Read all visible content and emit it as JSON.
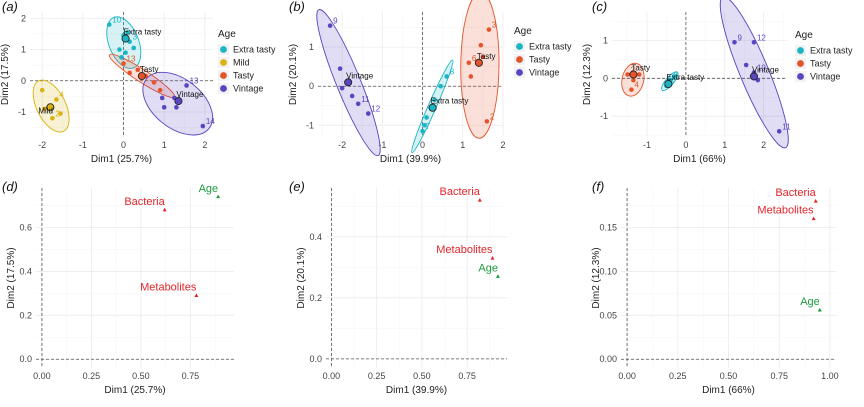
{
  "colors": {
    "Extra tasty": "#1ab5c4",
    "Mild": "#d9b310",
    "Tasty": "#e3542b",
    "Vintage": "#5a45c0",
    "Bacteria": "#e2262b",
    "Metabolites": "#e2262b",
    "Age": "#1e9a3e"
  },
  "chart_data": [
    {
      "panel": "(a)",
      "type": "scatter",
      "xlabel": "Dim1 (25.7%)",
      "ylabel": "Dim2 (17.5%)",
      "xlim": [
        -2.3,
        2.2
      ],
      "ylim": [
        -1.8,
        2.2
      ],
      "xticks": [
        -2,
        -1,
        0,
        1,
        2
      ],
      "yticks": [
        -1,
        0,
        1,
        2
      ],
      "legend_title": "Age",
      "legend": [
        "Extra tasty",
        "Mild",
        "Tasty",
        "Vintage"
      ],
      "points": [
        {
          "g": "Extra tasty",
          "x": -0.35,
          "y": 1.8,
          "label": "10"
        },
        {
          "g": "Extra tasty",
          "x": 0.0,
          "y": 1.45,
          "label": ""
        },
        {
          "g": "Extra tasty",
          "x": 0.1,
          "y": 1.55,
          "label": ""
        },
        {
          "g": "Extra tasty",
          "x": 0.15,
          "y": 1.25,
          "label": "3"
        },
        {
          "g": "Extra tasty",
          "x": 0.25,
          "y": 1.05,
          "label": ""
        },
        {
          "g": "Extra tasty",
          "x": -0.1,
          "y": 1.0,
          "label": ""
        },
        {
          "g": "Extra tasty",
          "x": 0.05,
          "y": 0.9,
          "label": ""
        },
        {
          "g": "Extra tasty",
          "x": -0.05,
          "y": 0.75,
          "label": ""
        },
        {
          "g": "Mild",
          "x": -2.0,
          "y": -0.3,
          "label": ""
        },
        {
          "g": "Mild",
          "x": -1.65,
          "y": -0.6,
          "label": "4"
        },
        {
          "g": "Mild",
          "x": -1.75,
          "y": -1.2,
          "label": "2"
        },
        {
          "g": "Mild",
          "x": -1.95,
          "y": -0.9,
          "label": ""
        },
        {
          "g": "Mild",
          "x": -1.55,
          "y": -1.05,
          "label": ""
        },
        {
          "g": "Tasty",
          "x": 0.0,
          "y": 0.55,
          "label": "13"
        },
        {
          "g": "Tasty",
          "x": 0.15,
          "y": 0.25,
          "label": ""
        },
        {
          "g": "Tasty",
          "x": 0.35,
          "y": 0.35,
          "label": ""
        },
        {
          "g": "Tasty",
          "x": 0.55,
          "y": 0.15,
          "label": ""
        },
        {
          "g": "Tasty",
          "x": 0.75,
          "y": -0.05,
          "label": ""
        },
        {
          "g": "Tasty",
          "x": 0.9,
          "y": -0.3,
          "label": ""
        },
        {
          "g": "Vintage",
          "x": 0.95,
          "y": -0.55,
          "label": ""
        },
        {
          "g": "Vintage",
          "x": 1.25,
          "y": -0.55,
          "label": ""
        },
        {
          "g": "Vintage",
          "x": 1.55,
          "y": -0.15,
          "label": "13"
        },
        {
          "g": "Vintage",
          "x": 1.3,
          "y": -0.85,
          "label": ""
        },
        {
          "g": "Vintage",
          "x": 1.95,
          "y": -1.45,
          "label": "14"
        },
        {
          "g": "Vintage",
          "x": 1.0,
          "y": -0.85,
          "label": ""
        }
      ],
      "means": [
        {
          "g": "Extra tasty",
          "x": 0.05,
          "y": 1.35,
          "label": "Extra tasty"
        },
        {
          "g": "Mild",
          "x": -1.8,
          "y": -0.85,
          "label": "Mild"
        },
        {
          "g": "Tasty",
          "x": 0.45,
          "y": 0.15,
          "label": "Tasty"
        },
        {
          "g": "Vintage",
          "x": 1.35,
          "y": -0.65,
          "label": "Vintage"
        }
      ]
    },
    {
      "panel": "(b)",
      "type": "scatter",
      "xlabel": "Dim1 (39.9%)",
      "ylabel": "Dim2 (20.1%)",
      "xlim": [
        -2.6,
        2.0
      ],
      "ylim": [
        -1.3,
        1.9
      ],
      "xticks": [
        -2,
        -1,
        0,
        1,
        2
      ],
      "yticks": [
        -1,
        0,
        1
      ],
      "legend_title": "Age",
      "legend": [
        "Extra tasty",
        "Tasty",
        "Vintage"
      ],
      "points": [
        {
          "g": "Extra tasty",
          "x": 0.6,
          "y": 0.25,
          "label": "8"
        },
        {
          "g": "Extra tasty",
          "x": 0.45,
          "y": 0.0,
          "label": ""
        },
        {
          "g": "Extra tasty",
          "x": 0.3,
          "y": -0.35,
          "label": ""
        },
        {
          "g": "Extra tasty",
          "x": 0.2,
          "y": -0.55,
          "label": ""
        },
        {
          "g": "Extra tasty",
          "x": 0.1,
          "y": -0.8,
          "label": ""
        },
        {
          "g": "Extra tasty",
          "x": 0.05,
          "y": -1.0,
          "label": ""
        },
        {
          "g": "Extra tasty",
          "x": 0.0,
          "y": -1.15,
          "label": "7"
        },
        {
          "g": "Tasty",
          "x": 1.65,
          "y": 1.45,
          "label": "3"
        },
        {
          "g": "Tasty",
          "x": 1.45,
          "y": 1.05,
          "label": ""
        },
        {
          "g": "Tasty",
          "x": 1.15,
          "y": 0.6,
          "label": "6"
        },
        {
          "g": "Tasty",
          "x": 1.5,
          "y": 0.75,
          "label": ""
        },
        {
          "g": "Tasty",
          "x": 1.2,
          "y": 0.25,
          "label": ""
        },
        {
          "g": "Tasty",
          "x": 1.6,
          "y": -0.9,
          "label": "2"
        },
        {
          "g": "Vintage",
          "x": -2.3,
          "y": 1.55,
          "label": "9"
        },
        {
          "g": "Vintage",
          "x": -2.05,
          "y": 0.45,
          "label": ""
        },
        {
          "g": "Vintage",
          "x": -2.0,
          "y": -0.05,
          "label": ""
        },
        {
          "g": "Vintage",
          "x": -1.75,
          "y": -0.25,
          "label": ""
        },
        {
          "g": "Vintage",
          "x": -1.6,
          "y": -0.45,
          "label": "11"
        },
        {
          "g": "Vintage",
          "x": -1.35,
          "y": -0.7,
          "label": "12"
        }
      ],
      "means": [
        {
          "g": "Extra tasty",
          "x": 0.25,
          "y": -0.55,
          "label": "Extra tasty"
        },
        {
          "g": "Tasty",
          "x": 1.4,
          "y": 0.6,
          "label": "Tasty"
        },
        {
          "g": "Vintage",
          "x": -1.85,
          "y": 0.1,
          "label": "Vintage"
        }
      ]
    },
    {
      "panel": "(c)",
      "type": "scatter",
      "xlabel": "Dim1 (66%)",
      "ylabel": "Dim2 (12.3%)",
      "xlim": [
        -1.9,
        2.6
      ],
      "ylim": [
        -1.55,
        1.75
      ],
      "xticks": [
        -1,
        0,
        1,
        2
      ],
      "yticks": [
        -1,
        0,
        1
      ],
      "legend_title": "Age",
      "legend": [
        "Extra tasty",
        "Tasty",
        "Vintage"
      ],
      "points": [
        {
          "g": "Extra tasty",
          "x": -0.5,
          "y": -0.2,
          "label": "5"
        },
        {
          "g": "Extra tasty",
          "x": -0.45,
          "y": -0.1,
          "label": "6"
        },
        {
          "g": "Extra tasty",
          "x": -0.4,
          "y": -0.05,
          "label": "8"
        },
        {
          "g": "Extra tasty",
          "x": -0.3,
          "y": 0.05,
          "label": ""
        },
        {
          "g": "Tasty",
          "x": -1.5,
          "y": 0.1,
          "label": "2"
        },
        {
          "g": "Tasty",
          "x": -1.2,
          "y": 0.1,
          "label": ""
        },
        {
          "g": "Tasty",
          "x": -1.35,
          "y": -0.05,
          "label": ""
        },
        {
          "g": "Tasty",
          "x": -1.4,
          "y": -0.3,
          "label": "4"
        },
        {
          "g": "Vintage",
          "x": 1.25,
          "y": 0.95,
          "label": "9"
        },
        {
          "g": "Vintage",
          "x": 1.75,
          "y": 0.95,
          "label": "12"
        },
        {
          "g": "Vintage",
          "x": 1.55,
          "y": 0.35,
          "label": ""
        },
        {
          "g": "Vintage",
          "x": 1.75,
          "y": 0.15,
          "label": "10"
        },
        {
          "g": "Vintage",
          "x": 1.85,
          "y": -0.05,
          "label": ""
        },
        {
          "g": "Vintage",
          "x": 2.4,
          "y": -1.4,
          "label": "11"
        }
      ],
      "means": [
        {
          "g": "Extra tasty",
          "x": -0.45,
          "y": -0.15,
          "label": "Extra tasty"
        },
        {
          "g": "Tasty",
          "x": -1.35,
          "y": 0.1,
          "label": "Tasty"
        },
        {
          "g": "Vintage",
          "x": 1.75,
          "y": 0.05,
          "label": "Vintage"
        }
      ]
    },
    {
      "panel": "(d)",
      "type": "scatter",
      "xlabel": "Dim1 (25.7%)",
      "ylabel": "Dim2 (17.5%)",
      "xlim": [
        -0.03,
        0.97
      ],
      "ylim": [
        -0.04,
        0.78
      ],
      "xticks": [
        0.0,
        0.25,
        0.5,
        0.75
      ],
      "xticklabels": [
        "0.00",
        "0.25",
        "0.50",
        "0.75"
      ],
      "yticks": [
        0.0,
        0.2,
        0.4,
        0.6
      ],
      "yticklabels": [
        "0.0",
        "0.2",
        "0.4",
        "0.6"
      ],
      "points": [
        {
          "name": "Age",
          "x": 0.89,
          "y": 0.74
        },
        {
          "name": "Bacteria",
          "x": 0.62,
          "y": 0.68
        },
        {
          "name": "Metabolites",
          "x": 0.78,
          "y": 0.29
        }
      ]
    },
    {
      "panel": "(e)",
      "type": "scatter",
      "xlabel": "Dim1 (39.9%)",
      "ylabel": "Dim2 (20.1%)",
      "xlim": [
        -0.03,
        0.97
      ],
      "ylim": [
        -0.03,
        0.56
      ],
      "xticks": [
        0.0,
        0.25,
        0.5,
        0.75
      ],
      "xticklabels": [
        "0.00",
        "0.25",
        "0.50",
        "0.75"
      ],
      "yticks": [
        0.0,
        0.2,
        0.4
      ],
      "yticklabels": [
        "0.0",
        "0.2",
        "0.4"
      ],
      "points": [
        {
          "name": "Bacteria",
          "x": 0.82,
          "y": 0.52
        },
        {
          "name": "Metabolites",
          "x": 0.89,
          "y": 0.33
        },
        {
          "name": "Age",
          "x": 0.92,
          "y": 0.27
        }
      ]
    },
    {
      "panel": "(f)",
      "type": "scatter",
      "xlabel": "Dim1 (66%)",
      "ylabel": "Dim2 (12.3%)",
      "xlim": [
        -0.03,
        1.03
      ],
      "ylim": [
        -0.01,
        0.195
      ],
      "xticks": [
        0.0,
        0.25,
        0.5,
        0.75,
        1.0
      ],
      "xticklabels": [
        "0.00",
        "0.25",
        "0.50",
        "0.75",
        "1.00"
      ],
      "yticks": [
        0.0,
        0.05,
        0.1,
        0.15
      ],
      "yticklabels": [
        "0.00",
        "0.05",
        "0.10",
        "0.15"
      ],
      "points": [
        {
          "name": "Bacteria",
          "x": 0.93,
          "y": 0.18
        },
        {
          "name": "Metabolites",
          "x": 0.92,
          "y": 0.16
        },
        {
          "name": "Age",
          "x": 0.95,
          "y": 0.056
        }
      ]
    }
  ]
}
